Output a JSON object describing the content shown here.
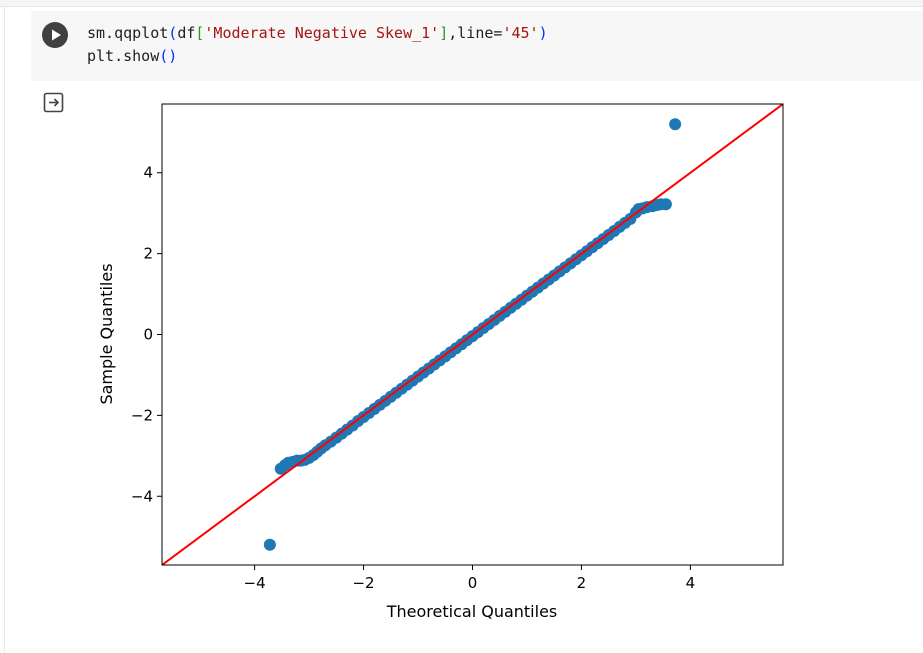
{
  "cell": {
    "code_lines": [
      [
        {
          "t": "sm.qqplot",
          "c": "plain"
        },
        {
          "t": "(",
          "c": "br1"
        },
        {
          "t": "df",
          "c": "plain"
        },
        {
          "t": "[",
          "c": "br2"
        },
        {
          "t": "'Moderate Negative Skew_1'",
          "c": "str"
        },
        {
          "t": "]",
          "c": "br2"
        },
        {
          "t": ",line=",
          "c": "plain"
        },
        {
          "t": "'45'",
          "c": "str"
        },
        {
          "t": ")",
          "c": "br1"
        }
      ],
      [
        {
          "t": "plt.show",
          "c": "plain"
        },
        {
          "t": "()",
          "c": "br1"
        }
      ]
    ],
    "run_icon": "play-icon",
    "output_icon": "output-redirect-icon"
  },
  "chart_data": {
    "type": "scatter",
    "xlabel": "Theoretical Quantiles",
    "ylabel": "Sample Quantiles",
    "xlim": [
      -5.7,
      5.7
    ],
    "ylim": [
      -5.7,
      5.7
    ],
    "xticks": [
      -4,
      -2,
      0,
      2,
      4
    ],
    "yticks": [
      -4,
      -2,
      0,
      2,
      4
    ],
    "tick_labels": [
      "−4",
      "−2",
      "0",
      "2",
      "4"
    ],
    "grid": false,
    "reference_line": {
      "name": "45-degree line",
      "slope": 1,
      "intercept": 0,
      "color": "#ff0000"
    },
    "marker_color": "#1f77b4",
    "points": [
      [
        -3.72,
        -5.2
      ],
      [
        -3.52,
        -3.32
      ],
      [
        -3.44,
        -3.23
      ],
      [
        -3.38,
        -3.17
      ],
      [
        -3.3,
        -3.15
      ],
      [
        -3.22,
        -3.12
      ],
      [
        -3.15,
        -3.12
      ],
      [
        -3.08,
        -3.1
      ],
      [
        -3.0,
        -3.05
      ],
      [
        -2.92,
        -2.98
      ],
      [
        -2.85,
        -2.9
      ],
      [
        -2.78,
        -2.82
      ],
      [
        -2.7,
        -2.74
      ],
      [
        -2.6,
        -2.65
      ],
      [
        -2.5,
        -2.55
      ],
      [
        -2.4,
        -2.45
      ],
      [
        -2.3,
        -2.35
      ],
      [
        -2.2,
        -2.25
      ],
      [
        -2.1,
        -2.14
      ],
      [
        -2.0,
        -2.04
      ],
      [
        -1.9,
        -1.94
      ],
      [
        -1.8,
        -1.84
      ],
      [
        -1.7,
        -1.74
      ],
      [
        -1.6,
        -1.64
      ],
      [
        -1.5,
        -1.54
      ],
      [
        -1.4,
        -1.44
      ],
      [
        -1.3,
        -1.34
      ],
      [
        -1.2,
        -1.24
      ],
      [
        -1.1,
        -1.14
      ],
      [
        -1.0,
        -1.04
      ],
      [
        -0.9,
        -0.94
      ],
      [
        -0.8,
        -0.84
      ],
      [
        -0.7,
        -0.74
      ],
      [
        -0.6,
        -0.64
      ],
      [
        -0.5,
        -0.54
      ],
      [
        -0.4,
        -0.44
      ],
      [
        -0.3,
        -0.34
      ],
      [
        -0.2,
        -0.24
      ],
      [
        -0.1,
        -0.14
      ],
      [
        0.0,
        -0.04
      ],
      [
        0.1,
        0.06
      ],
      [
        0.2,
        0.16
      ],
      [
        0.3,
        0.26
      ],
      [
        0.4,
        0.36
      ],
      [
        0.5,
        0.46
      ],
      [
        0.6,
        0.56
      ],
      [
        0.7,
        0.66
      ],
      [
        0.8,
        0.76
      ],
      [
        0.9,
        0.86
      ],
      [
        1.0,
        0.96
      ],
      [
        1.1,
        1.06
      ],
      [
        1.2,
        1.16
      ],
      [
        1.3,
        1.26
      ],
      [
        1.4,
        1.36
      ],
      [
        1.5,
        1.46
      ],
      [
        1.6,
        1.56
      ],
      [
        1.7,
        1.66
      ],
      [
        1.8,
        1.76
      ],
      [
        1.9,
        1.86
      ],
      [
        2.0,
        1.96
      ],
      [
        2.1,
        2.06
      ],
      [
        2.2,
        2.16
      ],
      [
        2.3,
        2.26
      ],
      [
        2.4,
        2.36
      ],
      [
        2.5,
        2.46
      ],
      [
        2.6,
        2.56
      ],
      [
        2.7,
        2.66
      ],
      [
        2.8,
        2.76
      ],
      [
        2.9,
        2.86
      ],
      [
        3.0,
        3.02
      ],
      [
        3.05,
        3.1
      ],
      [
        3.12,
        3.12
      ],
      [
        3.2,
        3.15
      ],
      [
        3.3,
        3.17
      ],
      [
        3.38,
        3.2
      ],
      [
        3.46,
        3.22
      ],
      [
        3.55,
        3.22
      ],
      [
        3.72,
        5.2
      ]
    ]
  }
}
